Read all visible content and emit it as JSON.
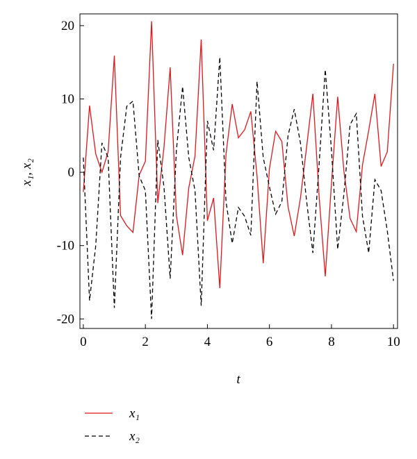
{
  "chart_data": {
    "type": "line",
    "xlabel": "t",
    "ylabel": "x₁, x₂",
    "x": [
      0,
      0.2,
      0.4,
      0.6,
      0.8,
      1,
      1.2,
      1.4,
      1.6,
      1.8,
      2,
      2.2,
      2.4,
      2.6,
      2.8,
      3,
      3.2,
      3.4,
      3.6,
      3.8,
      4,
      4.2,
      4.4,
      4.6,
      4.8,
      5,
      5.2,
      5.4,
      5.6,
      5.8,
      6,
      6.2,
      6.4,
      6.6,
      6.8,
      7,
      7.2,
      7.4,
      7.6,
      7.8,
      8,
      8.2,
      8.4,
      8.6,
      8.8,
      9,
      9.2,
      9.4,
      9.6,
      9.8,
      10
    ],
    "series": [
      {
        "name": "x₁",
        "color": "#e0161b",
        "dash": "solid",
        "values": [
          -2.7,
          9.1,
          2.5,
          0,
          2.8,
          15.9,
          -5.9,
          -7.3,
          -8.2,
          -0.4,
          1.5,
          20.6,
          -4.2,
          3.4,
          14.3,
          -5.9,
          -11.3,
          -2.1,
          2.2,
          18.1,
          -6.6,
          -3.5,
          -15.8,
          2.5,
          9.3,
          4.7,
          5.8,
          8.3,
          -0.5,
          -12.4,
          0.5,
          5.6,
          4.2,
          -4.7,
          -8.7,
          -3.5,
          3.5,
          10.7,
          -3.2,
          -14.2,
          -1.5,
          10.3,
          0.2,
          -6.3,
          -8.1,
          1.0,
          5.7,
          10.7,
          0.8,
          2.8,
          14.8
        ]
      },
      {
        "name": "x₂",
        "color": "#000000",
        "dash": "dashed",
        "values": [
          2.0,
          -17.5,
          -10,
          4,
          2,
          -18.5,
          2,
          9,
          9.7,
          -0.5,
          -2.5,
          -20,
          4.4,
          -2,
          -14.5,
          3,
          11.7,
          2,
          -2.5,
          -18.2,
          7,
          3,
          15.7,
          -4,
          -9.7,
          -4.8,
          -6,
          -8.6,
          12.4,
          2,
          -2,
          -5.7,
          -4,
          5,
          8.6,
          4,
          -4,
          -11,
          1,
          14,
          3,
          -10.5,
          -3,
          6.5,
          8,
          -6,
          -11,
          -1,
          -2.5,
          -8,
          -14.8
        ]
      }
    ],
    "xlim": [
      -0.11,
      10.13
    ],
    "ylim": [
      -21.3,
      21.6
    ],
    "xticks": [
      0,
      2,
      4,
      6,
      8,
      10
    ],
    "yticks": [
      -20,
      -10,
      0,
      10,
      20
    ],
    "grid": false
  }
}
